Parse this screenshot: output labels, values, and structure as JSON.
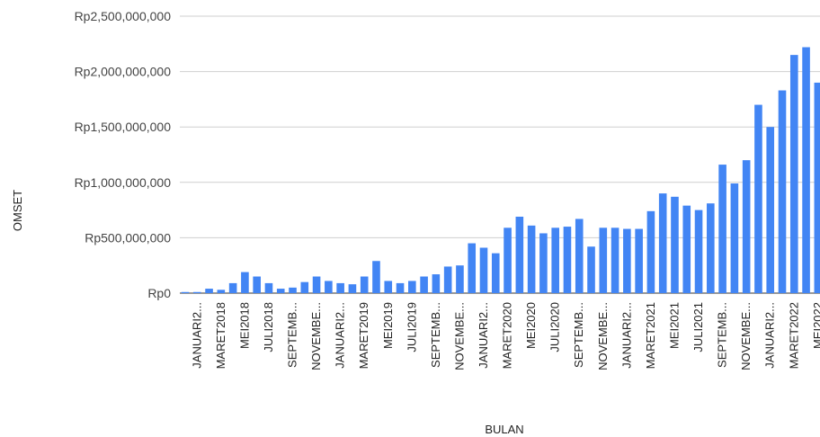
{
  "chart_data": {
    "type": "bar",
    "xlabel": "BULAN",
    "ylabel": "OMSET",
    "ylim": [
      0,
      2500000000
    ],
    "y_ticks": [
      {
        "value": 0,
        "label": "Rp0"
      },
      {
        "value": 500000000,
        "label": "Rp500,000,000"
      },
      {
        "value": 1000000000,
        "label": "Rp1,000,000,000"
      },
      {
        "value": 1500000000,
        "label": "Rp1,500,000,000"
      },
      {
        "value": 2000000000,
        "label": "Rp2,000,000,000"
      },
      {
        "value": 2500000000,
        "label": "Rp2,500,000,000"
      }
    ],
    "grid": true,
    "bar_color": "#4285f4",
    "x_tick_labels": [
      {
        "index": 1,
        "label": "JANUARI2..."
      },
      {
        "index": 3,
        "label": "MARET2018"
      },
      {
        "index": 5,
        "label": "MEI2018"
      },
      {
        "index": 7,
        "label": "JULI2018"
      },
      {
        "index": 9,
        "label": "SEPTEMB..."
      },
      {
        "index": 11,
        "label": "NOVEMBE..."
      },
      {
        "index": 13,
        "label": "JANUARI2..."
      },
      {
        "index": 15,
        "label": "MARET2019"
      },
      {
        "index": 17,
        "label": "MEI2019"
      },
      {
        "index": 19,
        "label": "JULI2019"
      },
      {
        "index": 21,
        "label": "SEPTEMB..."
      },
      {
        "index": 23,
        "label": "NOVEMBE..."
      },
      {
        "index": 25,
        "label": "JANUARI2..."
      },
      {
        "index": 27,
        "label": "MARET2020"
      },
      {
        "index": 29,
        "label": "MEI2020"
      },
      {
        "index": 31,
        "label": "JULI2020"
      },
      {
        "index": 33,
        "label": "SEPTEMB..."
      },
      {
        "index": 35,
        "label": "NOVEMBE..."
      },
      {
        "index": 37,
        "label": "JANUARI2..."
      },
      {
        "index": 39,
        "label": "MARET2021"
      },
      {
        "index": 41,
        "label": "MEI2021"
      },
      {
        "index": 43,
        "label": "JULI2021"
      },
      {
        "index": 45,
        "label": "SEPTEMB..."
      },
      {
        "index": 47,
        "label": "NOVEMBE..."
      },
      {
        "index": 49,
        "label": "JANUARI2..."
      },
      {
        "index": 51,
        "label": "MARET2022"
      },
      {
        "index": 53,
        "label": "MEI2022"
      }
    ],
    "values": [
      10000000,
      10000000,
      40000000,
      30000000,
      90000000,
      190000000,
      150000000,
      90000000,
      40000000,
      50000000,
      100000000,
      150000000,
      110000000,
      90000000,
      80000000,
      150000000,
      290000000,
      110000000,
      90000000,
      110000000,
      150000000,
      170000000,
      240000000,
      250000000,
      450000000,
      410000000,
      360000000,
      590000000,
      690000000,
      610000000,
      540000000,
      590000000,
      600000000,
      670000000,
      420000000,
      590000000,
      590000000,
      580000000,
      580000000,
      740000000,
      900000000,
      870000000,
      790000000,
      750000000,
      810000000,
      1160000000,
      990000000,
      1200000000,
      1700000000,
      1500000000,
      1830000000,
      2150000000,
      2220000000,
      1900000000
    ]
  }
}
